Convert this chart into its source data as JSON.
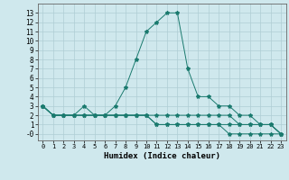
{
  "xlabel": "Humidex (Indice chaleur)",
  "xlim": [
    -0.5,
    23.5
  ],
  "ylim": [
    -0.7,
    14.0
  ],
  "xticks": [
    0,
    1,
    2,
    3,
    4,
    5,
    6,
    7,
    8,
    9,
    10,
    11,
    12,
    13,
    14,
    15,
    16,
    17,
    18,
    19,
    20,
    21,
    22,
    23
  ],
  "yticks": [
    0,
    1,
    2,
    3,
    4,
    5,
    6,
    7,
    8,
    9,
    10,
    11,
    12,
    13
  ],
  "ytick_labels": [
    "-0",
    "1",
    "2",
    "3",
    "4",
    "5",
    "6",
    "7",
    "8",
    "9",
    "10",
    "11",
    "12",
    "13"
  ],
  "background_color": "#cfe8ed",
  "grid_color": "#aecdd4",
  "line_color": "#1a7a6e",
  "line1": [
    3,
    2,
    2,
    2,
    3,
    2,
    2,
    3,
    5,
    8,
    11,
    12,
    13,
    13,
    7,
    4,
    4,
    3,
    3,
    2,
    2,
    1,
    1,
    0
  ],
  "line2": [
    3,
    2,
    2,
    2,
    2,
    2,
    2,
    2,
    2,
    2,
    2,
    2,
    2,
    2,
    2,
    2,
    2,
    2,
    2,
    1,
    1,
    1,
    1,
    0
  ],
  "line3": [
    3,
    2,
    2,
    2,
    2,
    2,
    2,
    2,
    2,
    2,
    2,
    1,
    1,
    1,
    1,
    1,
    1,
    1,
    1,
    1,
    1,
    1,
    1,
    0
  ],
  "line4": [
    3,
    2,
    2,
    2,
    2,
    2,
    2,
    2,
    2,
    2,
    2,
    1,
    1,
    1,
    1,
    1,
    1,
    1,
    0,
    0,
    0,
    0,
    0,
    0
  ]
}
